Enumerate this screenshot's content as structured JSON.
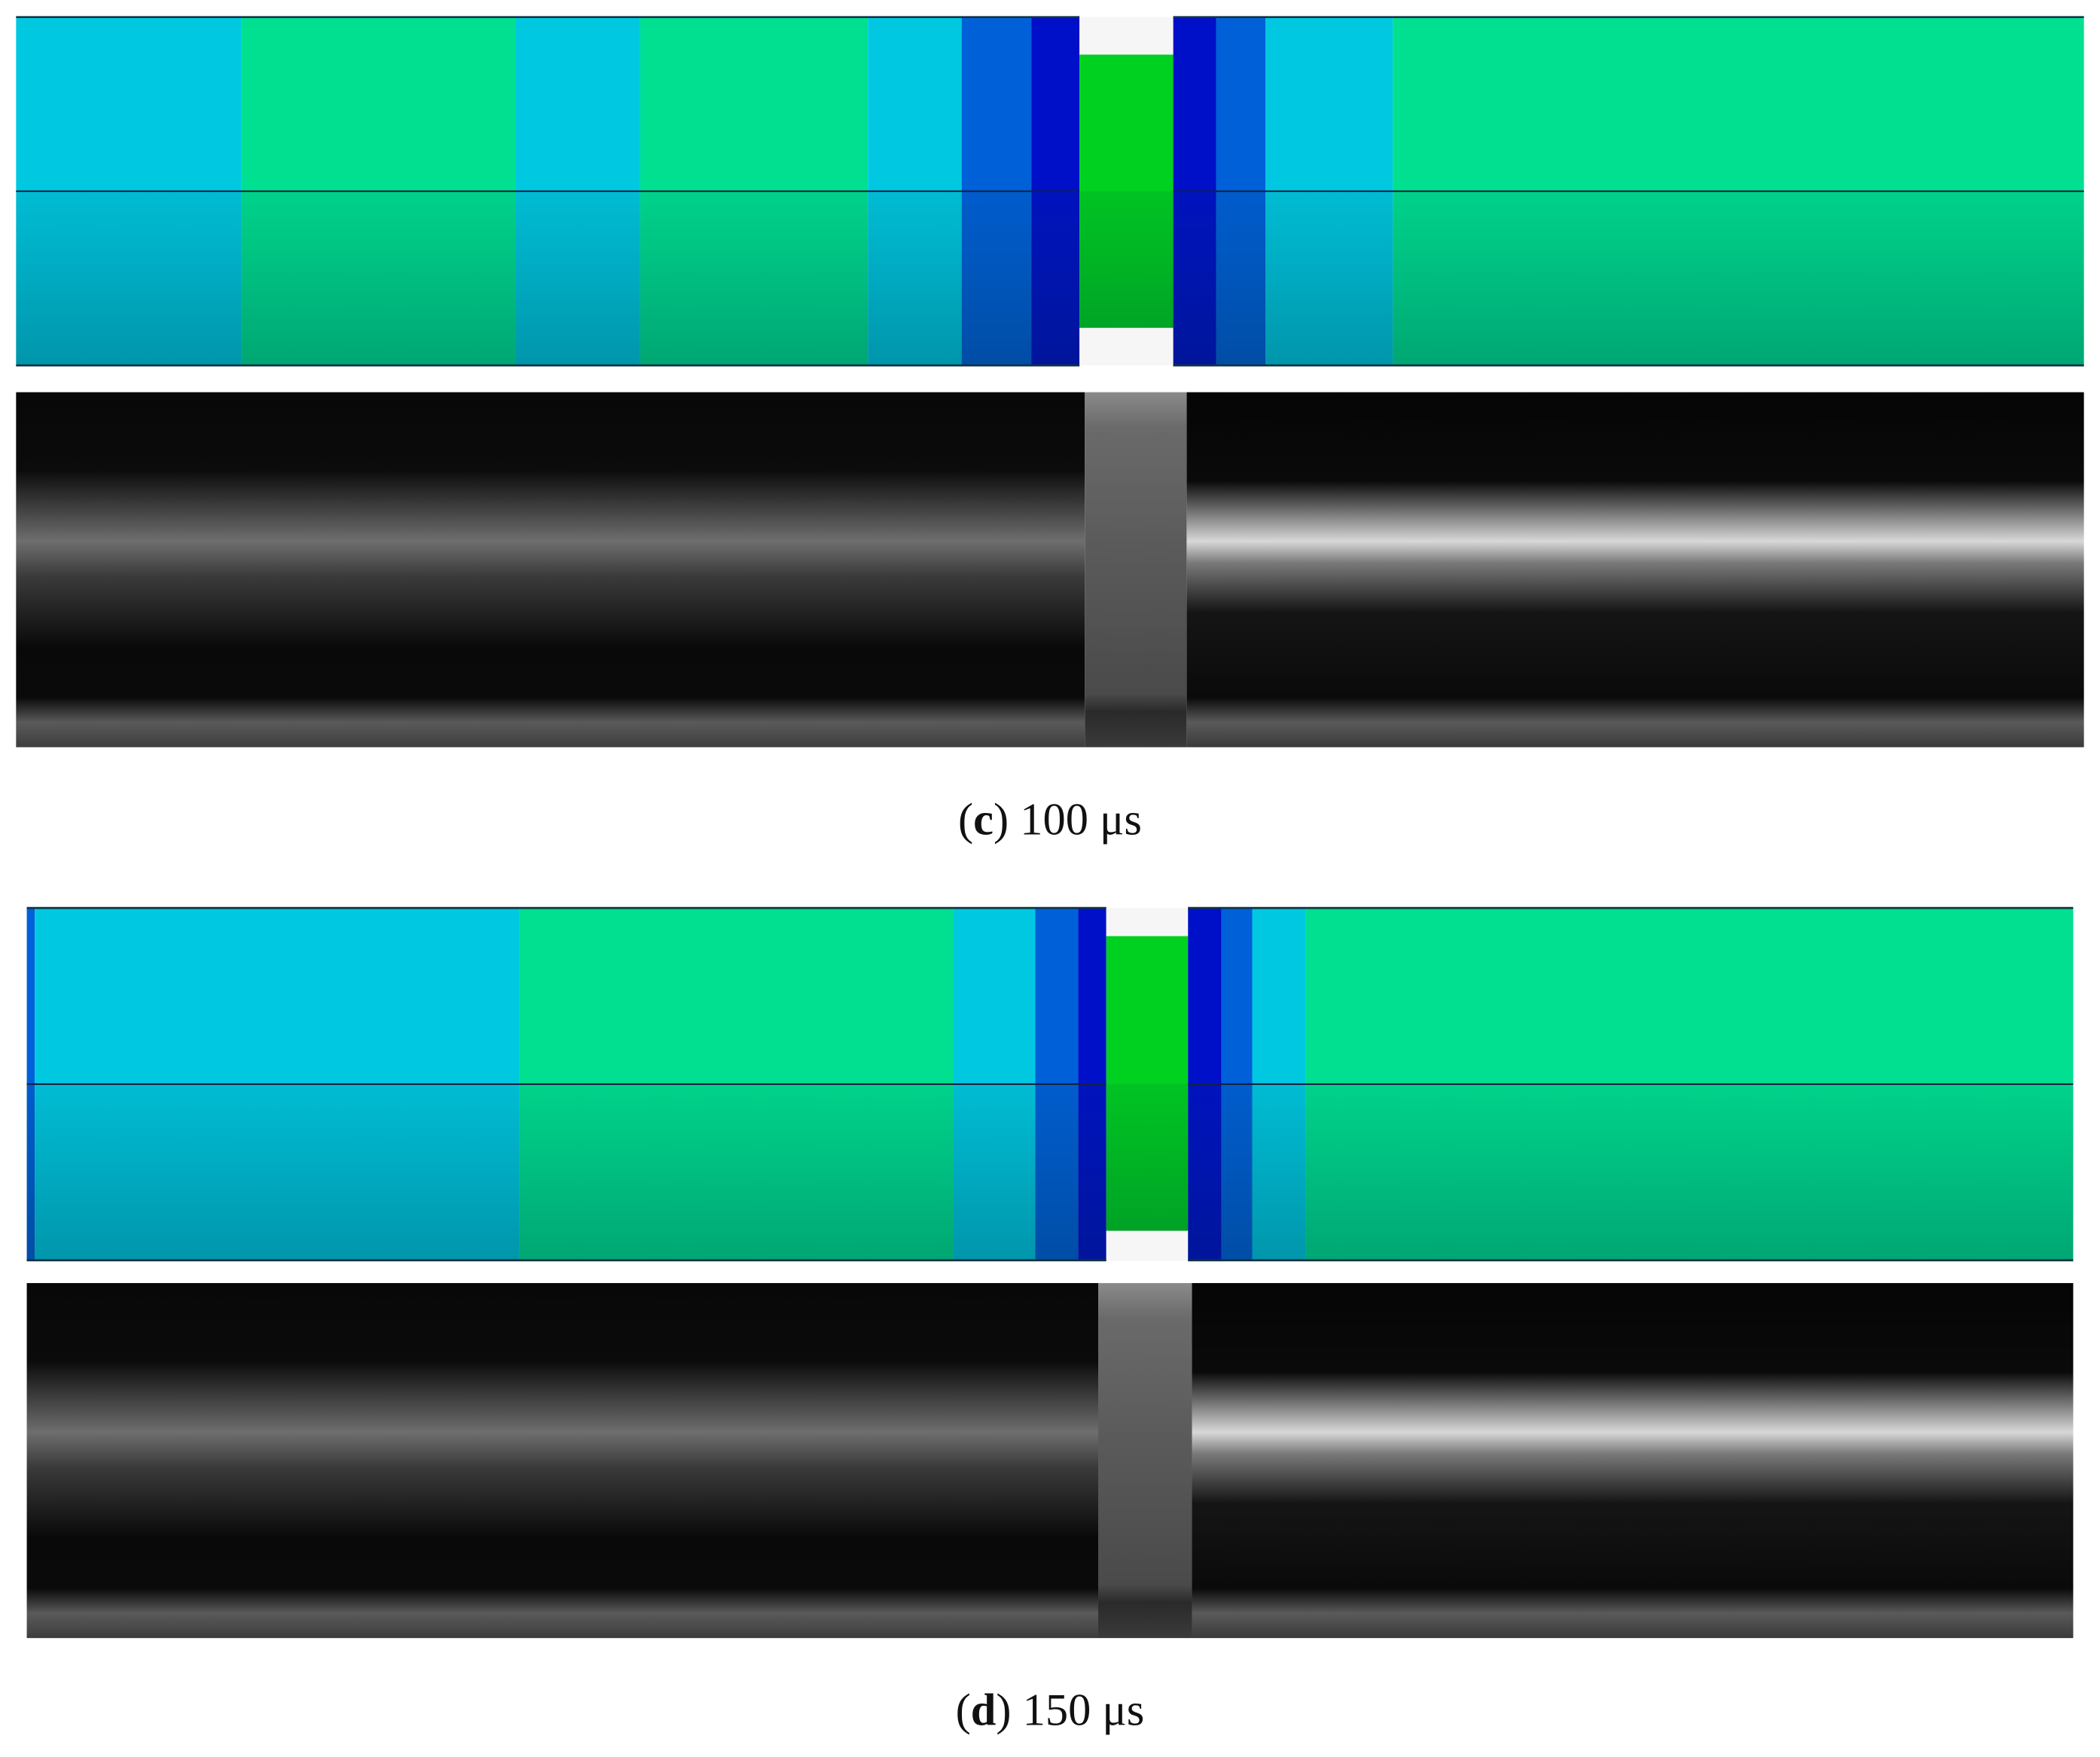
{
  "panels": [
    {
      "caption": {
        "prefix": "(",
        "label": "c",
        "suffix": ") 100  μs"
      }
    },
    {
      "caption": {
        "prefix": "(",
        "label": "d",
        "suffix": ") 150  μs"
      }
    }
  ]
}
